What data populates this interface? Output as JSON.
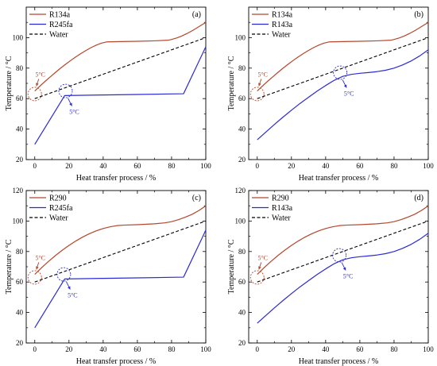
{
  "chart_data": [
    {
      "type": "line",
      "label": "(a)",
      "xlabel": "Heat transfer process / %",
      "ylabel": "Temperature / °C",
      "xlim": [
        -5,
        100
      ],
      "ylim": [
        20,
        120
      ],
      "xticks": [
        0,
        20,
        40,
        60,
        80,
        100
      ],
      "yticks": [
        20,
        40,
        60,
        80,
        100
      ],
      "grid": false,
      "legend": "top-left",
      "series": [
        {
          "name": "R134a",
          "color": "#b4472c",
          "style": "solid",
          "x": [
            0,
            3,
            6,
            9,
            12,
            15,
            18,
            21,
            24,
            27,
            30,
            33,
            36,
            39,
            42,
            50,
            60,
            70,
            78,
            80,
            83,
            86,
            89,
            92,
            95,
            98,
            100
          ],
          "y": [
            65,
            68.2,
            71.3,
            74.2,
            77.1,
            79.9,
            82.5,
            85,
            87.4,
            89.6,
            91.6,
            93.5,
            95.1,
            96.4,
            97.2,
            97.4,
            97.6,
            97.9,
            98.3,
            98.8,
            99.8,
            101.1,
            102.7,
            104.5,
            106.5,
            108.6,
            110
          ]
        },
        {
          "name": "R245fa",
          "color": "#2b2bd4",
          "style": "solid",
          "x": [
            0,
            17.5,
            40,
            60,
            87,
            100
          ],
          "y": [
            30,
            62,
            62.4,
            62.7,
            63.2,
            94
          ]
        },
        {
          "name": "Water",
          "color": "#000000",
          "style": "dashed",
          "x": [
            0,
            100
          ],
          "y": [
            60,
            100
          ]
        }
      ],
      "annotations": [
        {
          "text": "5°C",
          "color": "#b4472c",
          "x": 0,
          "y": 63,
          "placement": "above"
        },
        {
          "text": "5°C",
          "color": "#2b2bd4",
          "x": 18,
          "y": 65,
          "placement": "below"
        }
      ]
    },
    {
      "type": "line",
      "label": "(b)",
      "xlabel": "Heat transfer process / %",
      "ylabel": "Temperature / °C",
      "xlim": [
        -5,
        100
      ],
      "ylim": [
        20,
        120
      ],
      "xticks": [
        0,
        20,
        40,
        60,
        80,
        100
      ],
      "yticks": [
        20,
        40,
        60,
        80,
        100
      ],
      "grid": false,
      "legend": "top-left",
      "series": [
        {
          "name": "R134a",
          "color": "#b4472c",
          "style": "solid",
          "x": [
            0,
            3,
            6,
            9,
            12,
            15,
            18,
            21,
            24,
            27,
            30,
            33,
            36,
            39,
            42,
            50,
            60,
            70,
            78,
            80,
            83,
            86,
            89,
            92,
            95,
            98,
            100
          ],
          "y": [
            65,
            68.2,
            71.3,
            74.2,
            77.1,
            79.9,
            82.5,
            85,
            87.4,
            89.6,
            91.6,
            93.5,
            95.1,
            96.4,
            97.2,
            97.4,
            97.6,
            97.9,
            98.3,
            98.8,
            99.8,
            101.1,
            102.7,
            104.5,
            106.5,
            108.6,
            110
          ]
        },
        {
          "name": "R143a",
          "color": "#2b2bd4",
          "style": "solid",
          "x": [
            0,
            5,
            10,
            15,
            20,
            25,
            30,
            35,
            40,
            45,
            50,
            55,
            60,
            65,
            70,
            75,
            80,
            85,
            90,
            95,
            100
          ],
          "y": [
            33,
            38,
            43,
            47.8,
            52.4,
            56.8,
            60.9,
            64.9,
            68.6,
            72,
            74.6,
            75.9,
            76.6,
            77.1,
            77.7,
            78.6,
            80,
            82.1,
            84.7,
            88,
            92
          ]
        },
        {
          "name": "Water",
          "color": "#000000",
          "style": "dashed",
          "x": [
            0,
            100
          ],
          "y": [
            60,
            100
          ]
        }
      ],
      "annotations": [
        {
          "text": "5°C",
          "color": "#b4472c",
          "x": 0,
          "y": 63,
          "placement": "above"
        },
        {
          "text": "5°C",
          "color": "#2b2bd4",
          "x": 48.5,
          "y": 77,
          "placement": "below"
        }
      ]
    },
    {
      "type": "line",
      "label": "(c)",
      "xlabel": "Heat transfer process / %",
      "ylabel": "Temperature / °C",
      "xlim": [
        -5,
        100
      ],
      "ylim": [
        20,
        120
      ],
      "xticks": [
        0,
        20,
        40,
        60,
        80,
        100
      ],
      "yticks": [
        20,
        40,
        60,
        80,
        100,
        120
      ],
      "grid": false,
      "legend": "top-left",
      "series": [
        {
          "name": "R290",
          "color": "#b4472c",
          "style": "solid",
          "x": [
            0,
            4,
            8,
            12,
            16,
            20,
            24,
            28,
            32,
            36,
            40,
            44,
            48,
            52,
            60,
            70,
            76,
            80,
            84,
            88,
            92,
            96,
            100
          ],
          "y": [
            65,
            69.4,
            73.5,
            77.3,
            80.8,
            84,
            86.9,
            89.5,
            91.7,
            93.6,
            95.1,
            96.2,
            97,
            97.3,
            97.6,
            98.2,
            98.8,
            99.6,
            100.9,
            102.5,
            104.4,
            106.9,
            110
          ]
        },
        {
          "name": "R245fa",
          "color": "#2b2bd4",
          "style": "solid",
          "x": [
            0,
            17.5,
            40,
            60,
            87,
            100
          ],
          "y": [
            30,
            62,
            62.4,
            62.7,
            63.2,
            94
          ]
        },
        {
          "name": "Water",
          "color": "#000000",
          "style": "dashed",
          "x": [
            0,
            100
          ],
          "y": [
            60,
            100
          ]
        }
      ],
      "annotations": [
        {
          "text": "5°C",
          "color": "#b4472c",
          "x": 0,
          "y": 63,
          "placement": "above"
        },
        {
          "text": "5°C",
          "color": "#2b2bd4",
          "x": 17,
          "y": 65,
          "placement": "below"
        }
      ]
    },
    {
      "type": "line",
      "label": "(d)",
      "xlabel": "Heat transfer process / %",
      "ylabel": "Temperature / °C",
      "xlim": [
        -5,
        100
      ],
      "ylim": [
        20,
        120
      ],
      "xticks": [
        0,
        20,
        40,
        60,
        80,
        100
      ],
      "yticks": [
        20,
        40,
        60,
        80,
        100,
        120
      ],
      "grid": false,
      "legend": "top-left",
      "series": [
        {
          "name": "R290",
          "color": "#b4472c",
          "style": "solid",
          "x": [
            0,
            4,
            8,
            12,
            16,
            20,
            24,
            28,
            32,
            36,
            40,
            44,
            48,
            52,
            60,
            70,
            76,
            80,
            84,
            88,
            92,
            96,
            100
          ],
          "y": [
            65,
            69.4,
            73.5,
            77.3,
            80.8,
            84,
            86.9,
            89.5,
            91.7,
            93.6,
            95.1,
            96.2,
            97,
            97.3,
            97.6,
            98.2,
            98.8,
            99.6,
            100.9,
            102.5,
            104.4,
            106.9,
            110
          ]
        },
        {
          "name": "R143a",
          "color": "#2b2bd4",
          "style": "solid",
          "x": [
            0,
            5,
            10,
            15,
            20,
            25,
            30,
            35,
            40,
            45,
            50,
            55,
            60,
            65,
            70,
            75,
            80,
            85,
            90,
            95,
            100
          ],
          "y": [
            33,
            38,
            43,
            47.8,
            52.4,
            56.8,
            60.9,
            64.9,
            68.6,
            72,
            74.6,
            75.9,
            76.6,
            77.1,
            77.7,
            78.6,
            80,
            82.1,
            84.7,
            88,
            92
          ]
        },
        {
          "name": "Water",
          "color": "#000000",
          "style": "dashed",
          "x": [
            0,
            100
          ],
          "y": [
            60,
            100
          ]
        }
      ],
      "annotations": [
        {
          "text": "5°C",
          "color": "#b4472c",
          "x": 0,
          "y": 63,
          "placement": "above"
        },
        {
          "text": "5°C",
          "color": "#2b2bd4",
          "x": 48,
          "y": 77.5,
          "placement": "below"
        }
      ]
    }
  ]
}
